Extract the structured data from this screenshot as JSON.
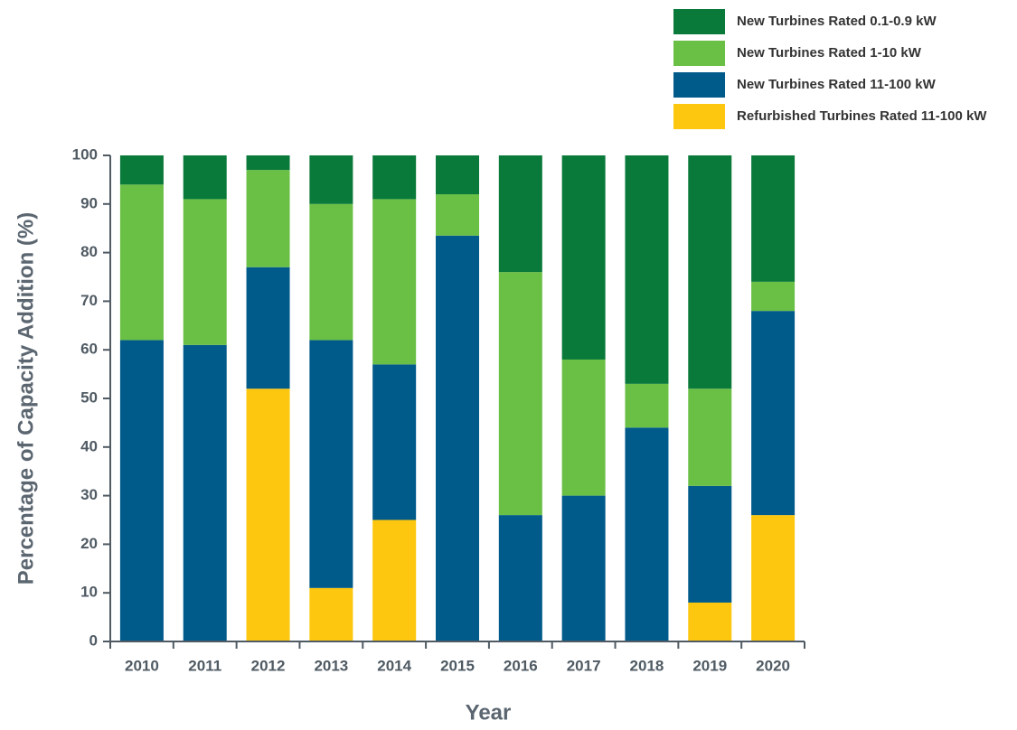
{
  "chart_data": {
    "type": "stacked-bar",
    "xlabel": "Year",
    "ylabel": "Percentage of Capacity Addition (%)",
    "categories": [
      "2010",
      "2011",
      "2012",
      "2013",
      "2014",
      "2015",
      "2016",
      "2017",
      "2018",
      "2019",
      "2020"
    ],
    "series": [
      {
        "name": "New Turbines Rated 0.1-0.9 kW",
        "color": "#0a7a3a",
        "values": [
          6,
          9,
          3,
          10,
          9,
          8,
          24,
          42,
          47,
          48,
          26
        ]
      },
      {
        "name": "New Turbines Rated 1-10 kW",
        "color": "#6abf45",
        "values": [
          32,
          30,
          20,
          28,
          34,
          8.5,
          50,
          28,
          9,
          20,
          6
        ]
      },
      {
        "name": "New Turbines Rated 11-100 kW",
        "color": "#005a8a",
        "values": [
          62,
          61,
          25,
          51,
          32,
          83.5,
          26,
          30,
          44,
          24,
          42
        ]
      },
      {
        "name": "Refurbished Turbines Rated 11-100 kW",
        "color": "#fcc70e",
        "values": [
          0,
          0,
          52,
          11,
          25,
          0,
          0,
          0,
          0,
          8,
          26
        ]
      }
    ],
    "ylim": [
      0,
      100
    ],
    "yticks": [
      0,
      10,
      20,
      30,
      40,
      50,
      60,
      70,
      80,
      90,
      100
    ],
    "legend": "top-right"
  }
}
